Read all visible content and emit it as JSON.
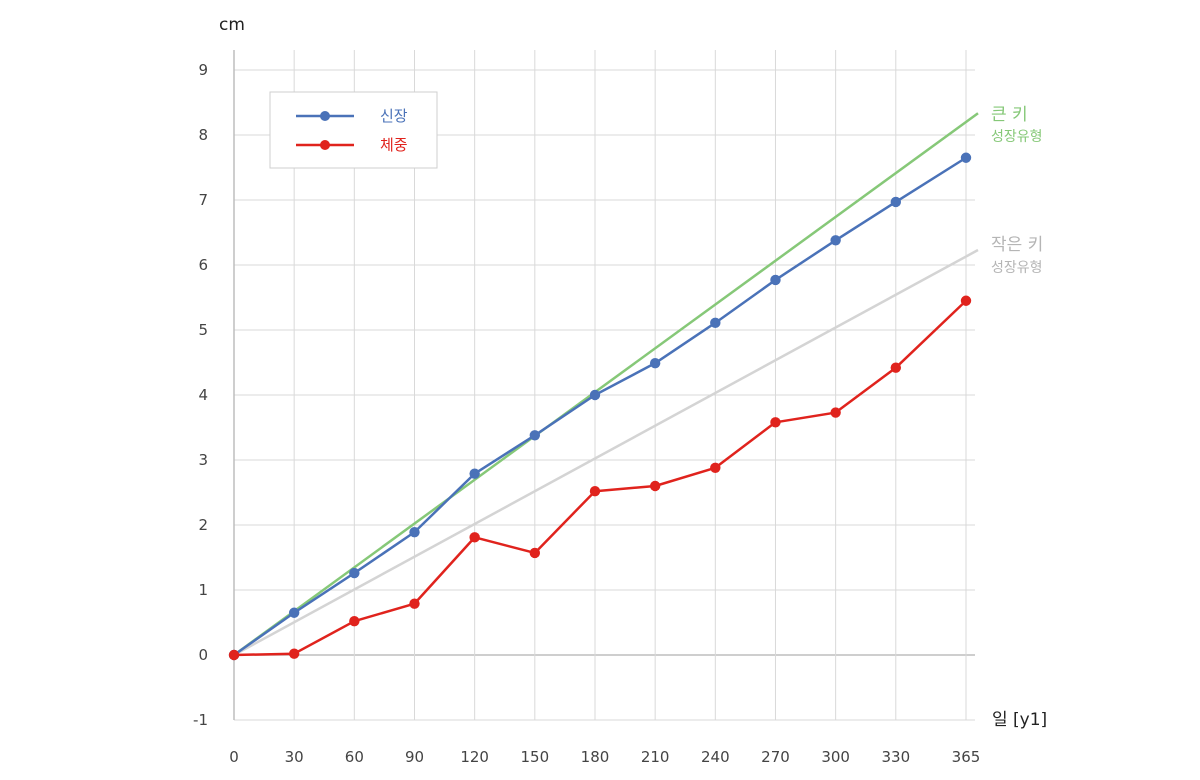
{
  "chart_data": {
    "type": "line",
    "x": [
      0,
      30,
      60,
      90,
      120,
      150,
      180,
      210,
      240,
      270,
      300,
      330,
      365
    ],
    "xlim": [
      0,
      365
    ],
    "ylim": [
      -1,
      9
    ],
    "yticks": [
      -1,
      0,
      1,
      2,
      3,
      4,
      5,
      6,
      7,
      8,
      9
    ],
    "xticks": [
      0,
      30,
      60,
      90,
      120,
      150,
      180,
      210,
      240,
      270,
      300,
      330,
      365
    ],
    "ylabel": "cm",
    "xlabel": "일 [y1]",
    "grid": true,
    "legend_position": "top-left",
    "series": [
      {
        "name": "신장",
        "color": "#4a72b8",
        "values": [
          0,
          0.65,
          1.26,
          1.89,
          2.79,
          3.38,
          4.0,
          4.49,
          5.11,
          5.77,
          6.38,
          6.97,
          7.65
        ]
      },
      {
        "name": "체중",
        "color": "#e0231d",
        "values": [
          0,
          0.02,
          0.52,
          0.79,
          1.81,
          1.57,
          2.52,
          2.6,
          2.88,
          3.58,
          3.73,
          4.42,
          5.45
        ]
      }
    ],
    "reference_lines": [
      {
        "title": "큰 키",
        "subtitle": "성장유형",
        "color": "#86c878",
        "x": [
          0,
          365
        ],
        "y": [
          0,
          8.2
        ]
      },
      {
        "title": "작은 키",
        "subtitle": "성장유형",
        "color": "#d4d4d4",
        "label_color": "#b5b5b5",
        "x": [
          0,
          365
        ],
        "y": [
          0,
          6.13
        ]
      }
    ]
  }
}
